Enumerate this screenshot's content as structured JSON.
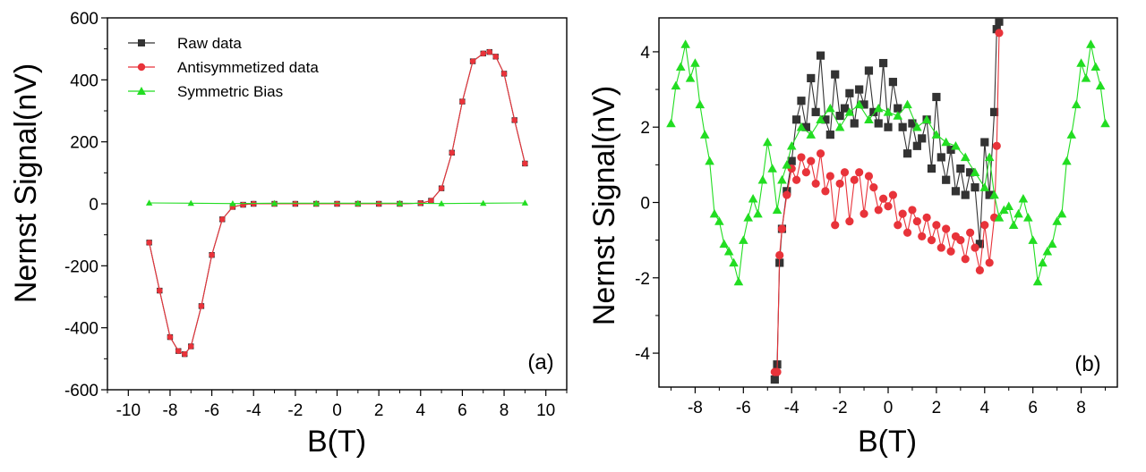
{
  "chart_data": [
    {
      "type": "line",
      "panel_label": "(a)",
      "xlabel": "B(T)",
      "ylabel": "Nernst Signal(nV)",
      "xlim": [
        -11,
        11
      ],
      "ylim": [
        -600,
        600
      ],
      "xticks": [
        -10,
        -8,
        -6,
        -4,
        -2,
        0,
        2,
        4,
        6,
        8,
        10
      ],
      "xtick_labels": [
        "-10",
        "-8",
        "-6",
        "-4",
        "-2",
        "0",
        "2",
        "4",
        "6",
        "8",
        "10"
      ],
      "yticks": [
        -600,
        -400,
        -200,
        0,
        200,
        400,
        600
      ],
      "ytick_labels": [
        "-600",
        "-400",
        "-200",
        "0",
        "200",
        "400",
        "600"
      ],
      "legend": {
        "position": "top-left",
        "entries": [
          "Raw data",
          "Antisymmetized data",
          "Symmetric Bias"
        ]
      },
      "series": [
        {
          "name": "Raw data",
          "color": "#333333",
          "marker": "square",
          "x": [
            -9.0,
            -8.5,
            -8.0,
            -7.6,
            -7.3,
            -7.0,
            -6.5,
            -6.0,
            -5.5,
            -5.0,
            -4.5,
            -4.0,
            -3.0,
            -2.0,
            -1.0,
            0.0,
            1.0,
            2.0,
            3.0,
            4.0,
            4.5,
            5.0,
            5.5,
            6.0,
            6.5,
            7.0,
            7.3,
            7.6,
            8.0,
            8.5,
            9.0
          ],
          "y": [
            -125,
            -280,
            -430,
            -475,
            -485,
            -460,
            -330,
            -165,
            -50,
            -10,
            -3,
            0,
            0,
            0,
            0,
            0,
            0,
            0,
            0,
            2,
            10,
            50,
            165,
            330,
            460,
            485,
            490,
            475,
            420,
            270,
            130
          ]
        },
        {
          "name": "Antisymmetized data",
          "color": "#e8333a",
          "marker": "circle",
          "x": [
            -9.0,
            -8.5,
            -8.0,
            -7.6,
            -7.3,
            -7.0,
            -6.5,
            -6.0,
            -5.5,
            -5.0,
            -4.5,
            -4.0,
            -3.0,
            -2.0,
            -1.0,
            0.0,
            1.0,
            2.0,
            3.0,
            4.0,
            4.5,
            5.0,
            5.5,
            6.0,
            6.5,
            7.0,
            7.3,
            7.6,
            8.0,
            8.5,
            9.0
          ],
          "y": [
            -125,
            -280,
            -430,
            -475,
            -485,
            -460,
            -330,
            -165,
            -50,
            -10,
            -3,
            0,
            0,
            0,
            0,
            0,
            0,
            0,
            0,
            2,
            10,
            50,
            165,
            330,
            460,
            485,
            490,
            475,
            420,
            270,
            130
          ]
        },
        {
          "name": "Symmetric Bias",
          "color": "#22dd22",
          "marker": "triangle",
          "x": [
            -9,
            -7,
            -5,
            -3,
            -1,
            1,
            3,
            5,
            7,
            9
          ],
          "y": [
            3,
            2,
            1,
            2,
            2,
            2,
            2,
            1,
            2,
            3
          ]
        }
      ]
    },
    {
      "type": "line",
      "panel_label": "(b)",
      "xlabel": "B(T)",
      "ylabel": "Nernst Signal(nV)",
      "xlim": [
        -9.5,
        9.5
      ],
      "ylim": [
        -4.9,
        4.9
      ],
      "xticks": [
        -8,
        -6,
        -4,
        -2,
        0,
        2,
        4,
        6,
        8
      ],
      "xtick_labels": [
        "-8",
        "-6",
        "-4",
        "-2",
        "0",
        "2",
        "4",
        "6",
        "8"
      ],
      "yticks": [
        -4,
        -2,
        0,
        2,
        4
      ],
      "ytick_labels": [
        "-4",
        "-2",
        "0",
        "2",
        "4"
      ],
      "series": [
        {
          "name": "Raw data",
          "color": "#333333",
          "marker": "square",
          "x": [
            -4.7,
            -4.6,
            -4.5,
            -4.4,
            -4.2,
            -4.0,
            -3.8,
            -3.6,
            -3.4,
            -3.2,
            -3.0,
            -2.8,
            -2.6,
            -2.4,
            -2.2,
            -2.0,
            -1.8,
            -1.6,
            -1.4,
            -1.2,
            -1.0,
            -0.8,
            -0.6,
            -0.4,
            -0.2,
            0.0,
            0.2,
            0.4,
            0.6,
            0.8,
            1.0,
            1.2,
            1.4,
            1.6,
            1.8,
            2.0,
            2.2,
            2.4,
            2.6,
            2.8,
            3.0,
            3.2,
            3.4,
            3.6,
            3.8,
            4.0,
            4.2,
            4.4,
            4.5,
            4.6
          ],
          "y": [
            -4.7,
            -4.3,
            -1.6,
            -0.7,
            0.3,
            1.1,
            2.2,
            2.7,
            2.0,
            3.3,
            2.4,
            3.9,
            2.2,
            1.8,
            3.4,
            2.3,
            2.5,
            2.9,
            2.1,
            3.0,
            2.6,
            3.5,
            2.4,
            2.1,
            3.7,
            2.0,
            3.2,
            2.5,
            2.0,
            1.3,
            2.1,
            1.5,
            1.7,
            2.2,
            0.9,
            2.8,
            1.2,
            0.6,
            1.4,
            0.3,
            0.9,
            0.2,
            0.8,
            0.4,
            -1.1,
            1.6,
            0.2,
            2.4,
            4.6,
            4.8
          ]
        },
        {
          "name": "Antisymmetized data",
          "color": "#e8333a",
          "marker": "circle",
          "x": [
            -4.7,
            -4.6,
            -4.5,
            -4.4,
            -4.2,
            -4.0,
            -3.8,
            -3.6,
            -3.4,
            -3.2,
            -3.0,
            -2.8,
            -2.6,
            -2.4,
            -2.2,
            -2.0,
            -1.8,
            -1.6,
            -1.4,
            -1.2,
            -1.0,
            -0.8,
            -0.6,
            -0.4,
            -0.2,
            0.0,
            0.2,
            0.4,
            0.6,
            0.8,
            1.0,
            1.2,
            1.4,
            1.6,
            1.8,
            2.0,
            2.2,
            2.4,
            2.6,
            2.8,
            3.0,
            3.2,
            3.4,
            3.6,
            3.8,
            4.0,
            4.2,
            4.4,
            4.5,
            4.6
          ],
          "y": [
            -4.5,
            -4.5,
            -1.4,
            -0.7,
            0.2,
            0.9,
            0.6,
            1.2,
            0.8,
            1.1,
            0.5,
            1.3,
            0.3,
            0.7,
            -0.6,
            0.5,
            0.8,
            -0.5,
            0.6,
            0.8,
            -0.3,
            0.7,
            0.4,
            -0.2,
            0.1,
            -0.1,
            0.2,
            -0.6,
            -0.3,
            -0.8,
            -0.2,
            -0.5,
            -0.9,
            -0.4,
            -1.0,
            -0.6,
            -1.2,
            -0.7,
            -1.3,
            -0.9,
            -1.0,
            -1.5,
            -0.8,
            -1.2,
            -1.8,
            -0.6,
            -1.6,
            -0.4,
            1.5,
            4.5
          ]
        },
        {
          "name": "Symmetric Bias",
          "color": "#22dd22",
          "marker": "triangle",
          "x": [
            -9.0,
            -8.8,
            -8.6,
            -8.4,
            -8.2,
            -8.0,
            -7.8,
            -7.6,
            -7.4,
            -7.2,
            -7.0,
            -6.8,
            -6.6,
            -6.4,
            -6.2,
            -6.0,
            -5.8,
            -5.6,
            -5.4,
            -5.2,
            -5.0,
            -4.8,
            -4.6,
            -4.4,
            -4.2,
            -4.0,
            -3.6,
            -3.2,
            -2.8,
            -2.4,
            -2.0,
            -1.6,
            -1.2,
            -0.8,
            -0.4,
            0.0,
            0.4,
            0.8,
            1.2,
            1.6,
            2.0,
            2.4,
            2.8,
            3.2,
            3.6,
            4.0,
            4.2,
            4.4,
            4.6,
            4.8,
            5.0,
            5.2,
            5.4,
            5.6,
            5.8,
            6.0,
            6.2,
            6.4,
            6.6,
            6.8,
            7.0,
            7.2,
            7.4,
            7.6,
            7.8,
            8.0,
            8.2,
            8.4,
            8.6,
            8.8,
            9.0
          ],
          "y": [
            2.1,
            3.1,
            3.6,
            4.2,
            3.3,
            3.7,
            2.6,
            1.8,
            1.1,
            -0.3,
            -0.5,
            -1.1,
            -1.3,
            -1.6,
            -2.1,
            -1.0,
            -0.4,
            0.1,
            -0.3,
            0.6,
            1.6,
            0.9,
            -0.2,
            0.6,
            1.0,
            1.5,
            2.0,
            1.8,
            2.2,
            2.5,
            2.0,
            2.4,
            2.6,
            2.2,
            2.5,
            2.4,
            2.3,
            2.6,
            2.0,
            2.2,
            1.8,
            1.6,
            1.5,
            1.2,
            0.8,
            0.4,
            1.2,
            0.2,
            -0.4,
            -0.2,
            -0.1,
            -0.6,
            -0.3,
            0.1,
            -0.4,
            -1.0,
            -2.1,
            -1.6,
            -1.3,
            -1.1,
            -0.5,
            -0.3,
            1.1,
            1.8,
            2.6,
            3.7,
            3.3,
            4.2,
            3.6,
            3.1,
            2.1
          ]
        }
      ]
    }
  ]
}
